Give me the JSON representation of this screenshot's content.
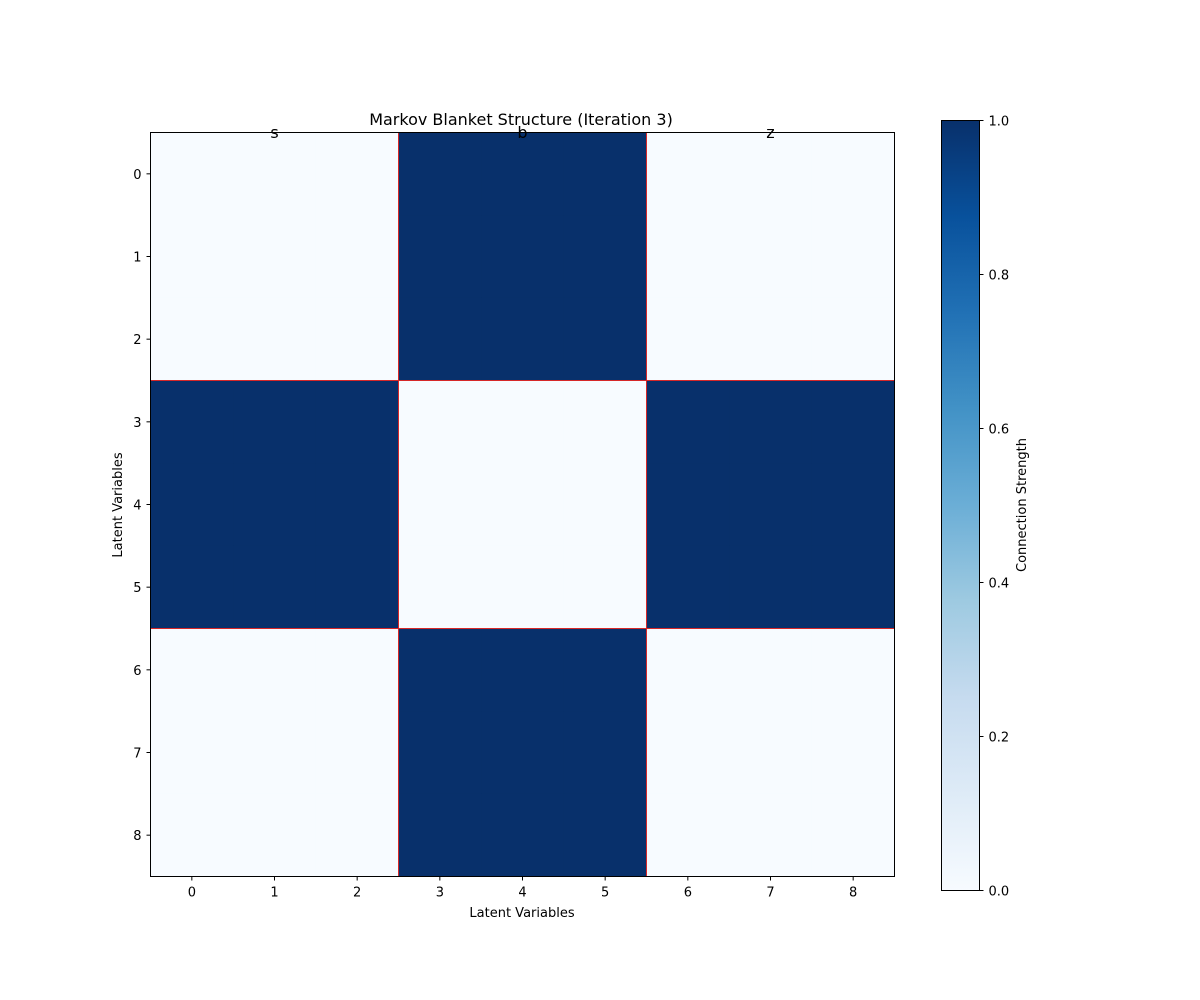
{
  "chart_data": {
    "type": "heatmap",
    "title": "Markov Blanket Structure (Iteration 3)",
    "xlabel": "Latent Variables",
    "ylabel": "Latent Variables",
    "x_ticks": [
      "0",
      "1",
      "2",
      "3",
      "4",
      "5",
      "6",
      "7",
      "8"
    ],
    "y_ticks": [
      "0",
      "1",
      "2",
      "3",
      "4",
      "5",
      "6",
      "7",
      "8"
    ],
    "group_labels": [
      "s",
      "b",
      "z"
    ],
    "group_boundaries": [
      2.5,
      5.5
    ],
    "values": [
      [
        0,
        0,
        0,
        1,
        1,
        1,
        0,
        0,
        0
      ],
      [
        0,
        0,
        0,
        1,
        1,
        1,
        0,
        0,
        0
      ],
      [
        0,
        0,
        0,
        1,
        1,
        1,
        0,
        0,
        0
      ],
      [
        1,
        1,
        1,
        0,
        0,
        0,
        1,
        1,
        1
      ],
      [
        1,
        1,
        1,
        0,
        0,
        0,
        1,
        1,
        1
      ],
      [
        1,
        1,
        1,
        0,
        0,
        0,
        1,
        1,
        1
      ],
      [
        0,
        0,
        0,
        1,
        1,
        1,
        0,
        0,
        0
      ],
      [
        0,
        0,
        0,
        1,
        1,
        1,
        0,
        0,
        0
      ],
      [
        0,
        0,
        0,
        1,
        1,
        1,
        0,
        0,
        0
      ]
    ],
    "colormap": "Blues",
    "color_low": "#f7fbff",
    "color_high": "#08306b",
    "boundary_color": "#d62728",
    "vmin": 0,
    "vmax": 1,
    "colorbar": {
      "label": "Connection Strength",
      "ticks": [
        "0.0",
        "0.2",
        "0.4",
        "0.6",
        "0.8",
        "1.0"
      ],
      "tick_values": [
        0,
        0.2,
        0.4,
        0.6,
        0.8,
        1.0
      ]
    }
  }
}
